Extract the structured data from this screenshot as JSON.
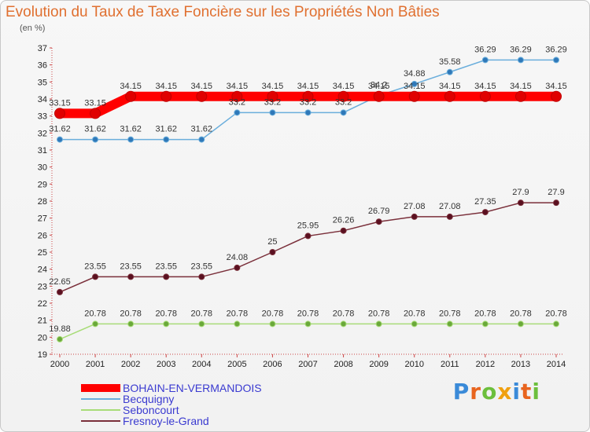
{
  "chart_data": {
    "type": "line",
    "title": "Evolution du Taux de Taxe Foncière sur les Propriétés Non Bâties",
    "subtitle": "(en %)",
    "x": [
      "2000",
      "2001",
      "2002",
      "2003",
      "2004",
      "2005",
      "2006",
      "2007",
      "2008",
      "2009",
      "2010",
      "2011",
      "2012",
      "2013",
      "2014"
    ],
    "ylim": [
      19,
      37
    ],
    "yticks": [
      19,
      20,
      21,
      22,
      23,
      24,
      25,
      26,
      27,
      28,
      29,
      30,
      31,
      32,
      33,
      34,
      35,
      36,
      37
    ],
    "grid": false,
    "legend_position": "bottom-left",
    "series": [
      {
        "name": "BOHAIN-EN-VERMANDOIS",
        "color": "#ff0000",
        "values": [
          33.15,
          33.15,
          34.15,
          34.15,
          34.15,
          34.15,
          34.15,
          34.15,
          34.15,
          34.15,
          34.15,
          34.15,
          34.15,
          34.15,
          34.15
        ],
        "labels": [
          "33.15",
          "33.15",
          "34.15",
          "34.15",
          "34.15",
          "34.15",
          "34.15",
          "34.15",
          "34.15",
          "34.15",
          "34.15",
          "34.15",
          "34.15",
          "34.15",
          "34.15"
        ]
      },
      {
        "name": "Becquigny",
        "color": "#6aaedc",
        "values": [
          31.62,
          31.62,
          31.62,
          31.62,
          31.62,
          33.2,
          33.2,
          33.2,
          33.2,
          34.2,
          34.88,
          35.58,
          36.29,
          36.29,
          36.29
        ],
        "labels": [
          "31.62",
          "31.62",
          "31.62",
          "31.62",
          "31.62",
          "33.2",
          "33.2",
          "33.2",
          "33.2",
          "34.2",
          "34.88",
          "35.58",
          "36.29",
          "36.29",
          "36.29"
        ]
      },
      {
        "name": "Seboncourt",
        "color": "#a8dc78",
        "values": [
          19.88,
          20.78,
          20.78,
          20.78,
          20.78,
          20.78,
          20.78,
          20.78,
          20.78,
          20.78,
          20.78,
          20.78,
          20.78,
          20.78,
          20.78
        ],
        "labels": [
          "19.88",
          "20.78",
          "20.78",
          "20.78",
          "20.78",
          "20.78",
          "20.78",
          "20.78",
          "20.78",
          "20.78",
          "20.78",
          "20.78",
          "20.78",
          "20.78",
          "20.78"
        ]
      },
      {
        "name": "Fresnoy-le-Grand",
        "color": "#7a2f3a",
        "values": [
          22.65,
          23.55,
          23.55,
          23.55,
          23.55,
          24.08,
          25,
          25.95,
          26.26,
          26.79,
          27.08,
          27.08,
          27.35,
          27.9,
          27.9
        ],
        "labels": [
          "22.65",
          "23.55",
          "23.55",
          "23.55",
          "23.55",
          "24.08",
          "25",
          "25.95",
          "26.26",
          "26.79",
          "27.08",
          "27.08",
          "27.35",
          "27.9",
          "27.9"
        ]
      }
    ]
  },
  "logo_text": "Proxiti",
  "logo_colors": [
    "#3a8ad8",
    "#e8641e",
    "#6cbf3c",
    "#f0a010",
    "#3a8ad8",
    "#e8641e",
    "#6cbf3c"
  ]
}
